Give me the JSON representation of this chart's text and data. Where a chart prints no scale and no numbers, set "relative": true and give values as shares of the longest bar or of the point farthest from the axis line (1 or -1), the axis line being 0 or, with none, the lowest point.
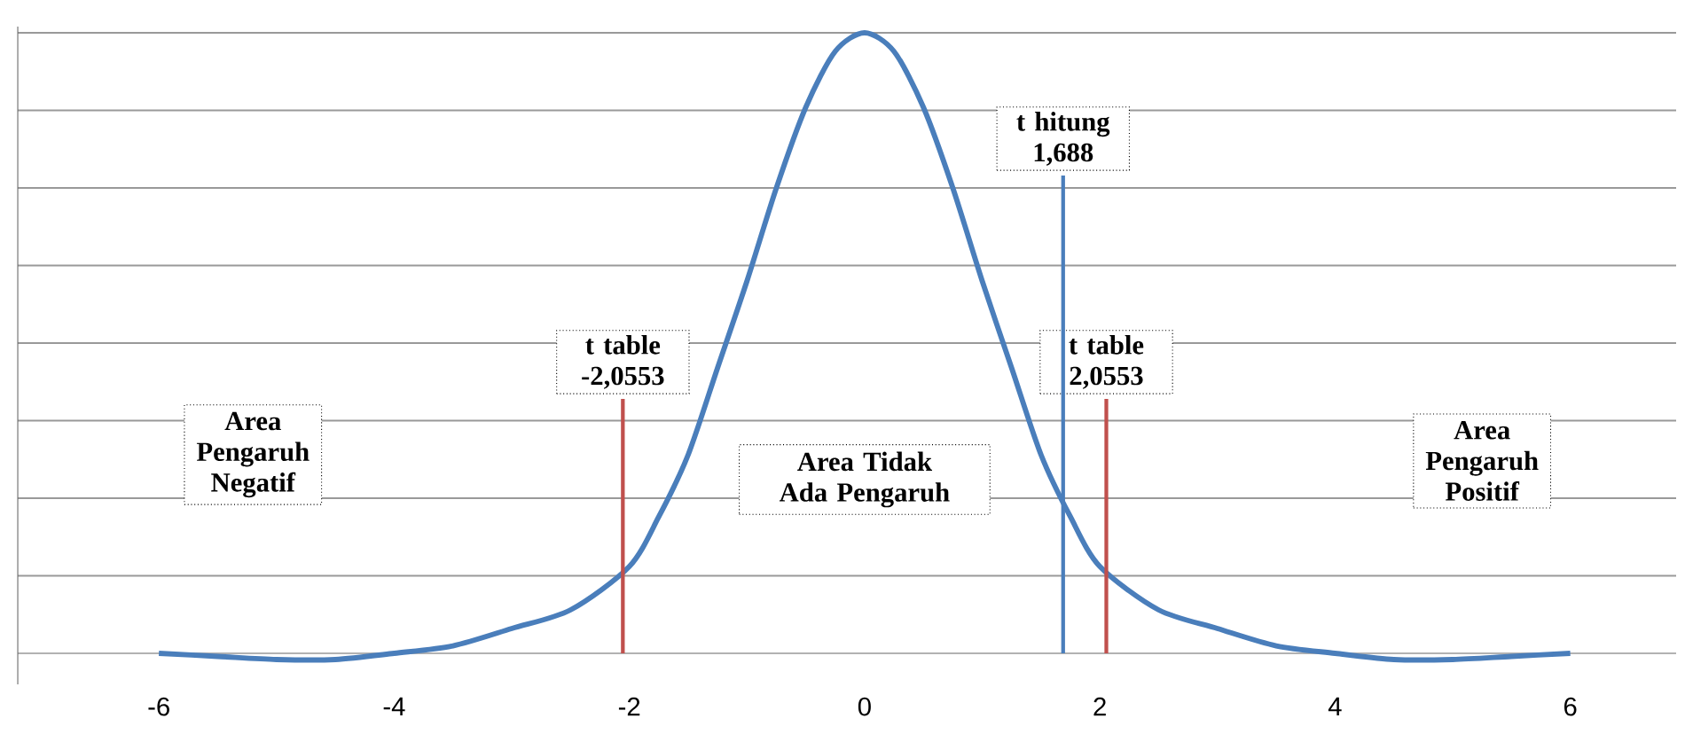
{
  "chart_data": {
    "type": "line",
    "relative": true,
    "grid": "y",
    "x": [
      -6,
      -5.5,
      -5,
      -4.5,
      -4,
      -3.5,
      -3,
      -2.5,
      -2,
      -1.75,
      -1.5,
      -1.25,
      -1,
      -0.75,
      -0.5,
      -0.25,
      0,
      0.25,
      0.5,
      0.75,
      1,
      1.25,
      1.5,
      1.75,
      2,
      2.5,
      3,
      3.5,
      4,
      4.5,
      5,
      5.5,
      6
    ],
    "series": [
      {
        "color": "#4a7ebb",
        "values": [
          0,
          -0.005,
          -0.01,
          -0.01,
          0,
          0.012,
          0.04,
          0.07,
          0.14,
          0.22,
          0.32,
          0.46,
          0.6,
          0.75,
          0.88,
          0.97,
          1,
          0.97,
          0.88,
          0.75,
          0.6,
          0.46,
          0.32,
          0.22,
          0.14,
          0.07,
          0.04,
          0.012,
          0,
          -0.01,
          -0.01,
          -0.005,
          0
        ]
      }
    ],
    "xlim": [
      -7.2,
      6.9
    ],
    "xticks": [
      -6,
      -4,
      -2,
      0,
      2,
      4,
      6
    ],
    "ref_lines": [
      {
        "axis": "x",
        "value": -2.0553,
        "label": "t table -2,0553",
        "color": "#c0504d",
        "line_style": "solid"
      },
      {
        "axis": "x",
        "value": 2.0553,
        "label": "t table 2,0553",
        "color": "#c0504d",
        "line_style": "solid"
      },
      {
        "axis": "x",
        "value": 1.688,
        "label": "t hitung 1,688",
        "color": "#4a7ebb",
        "line_style": "solid"
      }
    ],
    "annotations": [
      "Area Pengaruh Negatif",
      "Area Tidak Ada Pengaruh",
      "Area Pengaruh Positif"
    ]
  }
}
